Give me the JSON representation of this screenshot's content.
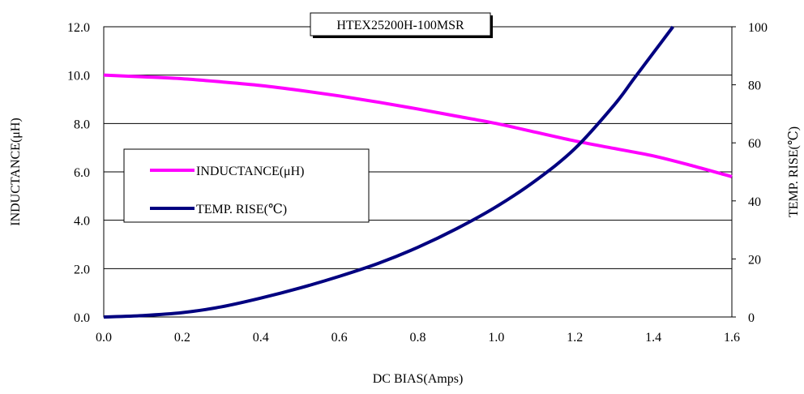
{
  "chart_data": {
    "type": "line",
    "title": "HTEX25200H-100MSR",
    "xlabel": "DC BIAS(Amps)",
    "ylabel_left": "INDUCTANCE(μH)",
    "ylabel_right": "TEMP. RISE(℃)",
    "xlim": [
      0,
      1.6
    ],
    "ylim_left": [
      0,
      12
    ],
    "ylim_right": [
      0,
      100
    ],
    "x_ticks": [
      "0.0",
      "0.2",
      "0.4",
      "0.6",
      "0.8",
      "1.0",
      "1.2",
      "1.4",
      "1.6"
    ],
    "y_left_ticks": [
      "0.0",
      "2.0",
      "4.0",
      "6.0",
      "8.0",
      "10.0",
      "12.0"
    ],
    "y_right_ticks": [
      "0",
      "20",
      "40",
      "60",
      "80",
      "100"
    ],
    "grid": "horizontal",
    "legend_position": "left-middle",
    "series": [
      {
        "name": "INDUCTANCE(μH)",
        "axis": "left",
        "color": "#ff00ff",
        "x": [
          0.0,
          0.1,
          0.2,
          0.3,
          0.4,
          0.5,
          0.6,
          0.7,
          0.8,
          0.9,
          1.0,
          1.1,
          1.2,
          1.3,
          1.4,
          1.5,
          1.6
        ],
        "values": [
          10.0,
          9.93,
          9.85,
          9.72,
          9.57,
          9.37,
          9.14,
          8.88,
          8.6,
          8.3,
          8.0,
          7.64,
          7.28,
          6.97,
          6.66,
          6.25,
          5.8
        ]
      },
      {
        "name": "TEMP. RISE(℃)",
        "axis": "right",
        "color": "#000080",
        "x": [
          0.0,
          0.1,
          0.2,
          0.3,
          0.4,
          0.5,
          0.6,
          0.7,
          0.8,
          0.9,
          1.0,
          1.1,
          1.2,
          1.3,
          1.35,
          1.4,
          1.45
        ],
        "values": [
          0,
          0.5,
          1.5,
          3.5,
          6.5,
          10,
          14,
          18.5,
          24,
          30.5,
          38,
          47,
          58,
          73,
          82,
          91,
          100
        ]
      }
    ]
  }
}
